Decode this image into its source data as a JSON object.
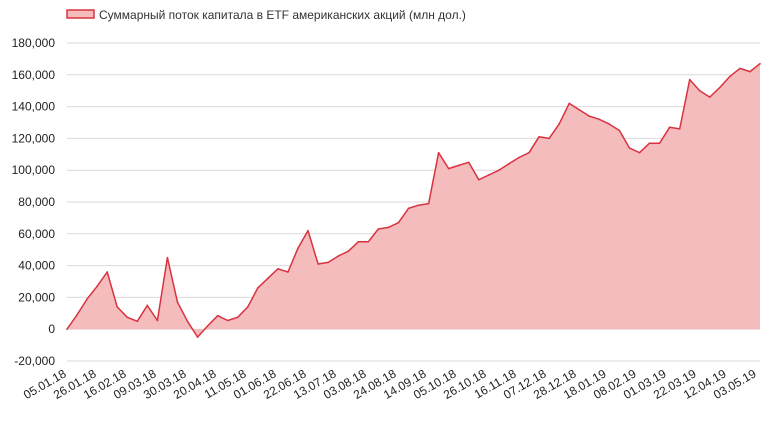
{
  "colors": {
    "line": "#d9333f",
    "fill": "#f4bcbc",
    "grid": "#d9d9d9"
  },
  "chart_data": {
    "type": "area",
    "title": "",
    "xlabel": "",
    "ylabel": "",
    "legend": {
      "position": "top-left"
    },
    "ylim": [
      -20000,
      180000
    ],
    "yticks": [
      -20000,
      0,
      20000,
      40000,
      60000,
      80000,
      100000,
      120000,
      140000,
      160000,
      180000
    ],
    "ytick_labels": [
      "-20,000",
      "0",
      "20,000",
      "40,000",
      "60,000",
      "80,000",
      "100,000",
      "120,000",
      "140,000",
      "160,000",
      "180,000"
    ],
    "grid": true,
    "x_tick_labels": [
      "05.01.18",
      "26.01.18",
      "16.02.18",
      "09.03.18",
      "30.03.18",
      "20.04.18",
      "11.05.18",
      "01.06.18",
      "22.06.18",
      "13.07.18",
      "03.08.18",
      "24.08.18",
      "14.09.18",
      "05.10.18",
      "26.10.18",
      "16.11.18",
      "07.12.18",
      "28.12.18",
      "18.01.19",
      "08.02.19",
      "01.03.19",
      "22.03.19",
      "12.04.19",
      "03.05.19"
    ],
    "series": [
      {
        "name": "Суммарный поток капитала в ETF американских акций (млн дол.)",
        "values": [
          0,
          9000,
          19000,
          27000,
          36000,
          14000,
          7500,
          5000,
          15000,
          5500,
          45000,
          17000,
          5000,
          -5000,
          2000,
          8500,
          5500,
          7500,
          14000,
          26000,
          32000,
          38000,
          36000,
          51000,
          62000,
          41000,
          42000,
          46000,
          49000,
          55000,
          55000,
          63000,
          64000,
          67000,
          76000,
          78000,
          79000,
          111000,
          101000,
          103000,
          105000,
          94000,
          97000,
          100000,
          104000,
          108000,
          111000,
          121000,
          120000,
          129000,
          142000,
          138000,
          134000,
          132000,
          129000,
          125000,
          114000,
          111000,
          117000,
          117000,
          127000,
          126000,
          157000,
          150000,
          146000,
          152000,
          159000,
          164000,
          162000,
          167000
        ]
      }
    ]
  }
}
